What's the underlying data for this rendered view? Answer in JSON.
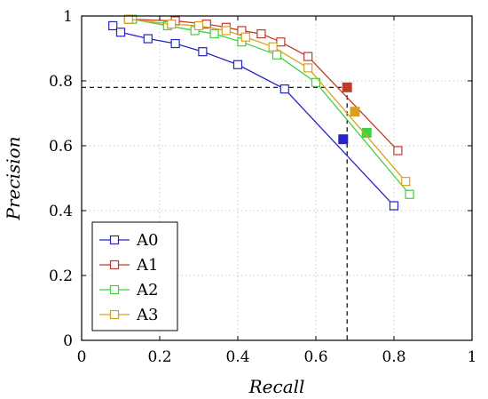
{
  "chart_data": {
    "type": "line",
    "xlabel": "Recall",
    "ylabel": "Precision",
    "xlim": [
      0,
      1
    ],
    "ylim": [
      0,
      1
    ],
    "xticks": [
      "0",
      "0.2",
      "0.4",
      "0.6",
      "0.8",
      "1"
    ],
    "yticks": [
      "0",
      "0.2",
      "0.4",
      "0.6",
      "0.8",
      "1"
    ],
    "grid": true,
    "legend_position": "bottom-left",
    "series": [
      {
        "name": "A0",
        "color": "#2424c8",
        "x": [
          0.08,
          0.1,
          0.17,
          0.24,
          0.31,
          0.4,
          0.52,
          0.8
        ],
        "y": [
          0.97,
          0.95,
          0.93,
          0.915,
          0.89,
          0.85,
          0.775,
          0.415
        ],
        "highlight": {
          "x": 0.67,
          "y": 0.62
        }
      },
      {
        "name": "A1",
        "color": "#c03a2b",
        "x": [
          0.12,
          0.24,
          0.32,
          0.37,
          0.41,
          0.46,
          0.51,
          0.58,
          0.81
        ],
        "y": [
          0.99,
          0.985,
          0.975,
          0.965,
          0.955,
          0.945,
          0.92,
          0.875,
          0.585
        ],
        "highlight": {
          "x": 0.68,
          "y": 0.78
        }
      },
      {
        "name": "A2",
        "color": "#40d040",
        "x": [
          0.13,
          0.22,
          0.29,
          0.34,
          0.41,
          0.5,
          0.6,
          0.84
        ],
        "y": [
          0.99,
          0.97,
          0.955,
          0.945,
          0.92,
          0.88,
          0.795,
          0.45
        ],
        "highlight": {
          "x": 0.73,
          "y": 0.64
        }
      },
      {
        "name": "A3",
        "color": "#d8a020",
        "x": [
          0.12,
          0.23,
          0.3,
          0.37,
          0.42,
          0.49,
          0.58,
          0.83
        ],
        "y": [
          0.99,
          0.975,
          0.97,
          0.955,
          0.935,
          0.905,
          0.84,
          0.49
        ],
        "highlight": {
          "x": 0.7,
          "y": 0.705
        }
      }
    ],
    "reference_point": {
      "x": 0.68,
      "y": 0.78
    }
  }
}
